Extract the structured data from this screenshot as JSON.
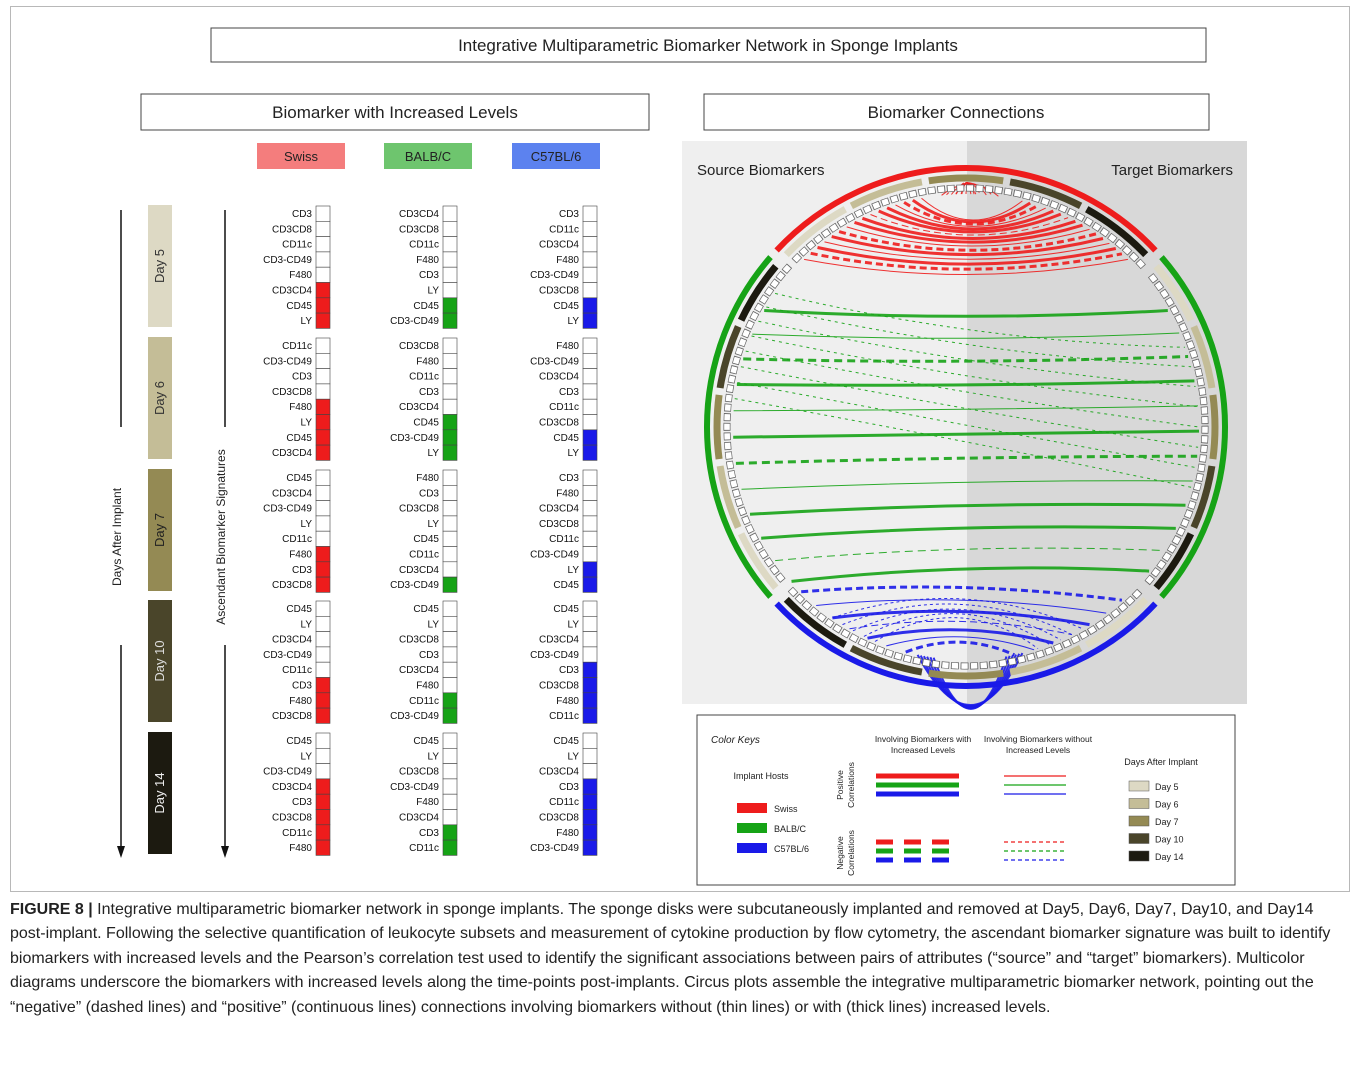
{
  "figure": {
    "title": "Integrative Multiparametric Biomarker Network in Sponge Implants",
    "left_title": "Biomarker with Increased Levels",
    "right_title": "Biomarker Connections",
    "hosts": [
      {
        "name": "Swiss",
        "color": "#ee1c1c",
        "light": "#f47d7d"
      },
      {
        "name": "BALB/C",
        "color": "#16a316",
        "light": "#6ec56e"
      },
      {
        "name": "C57BL/6",
        "color": "#1a1ae8",
        "light": "#5c82ef"
      }
    ],
    "days": [
      {
        "label": "Day 5",
        "color": "#ddd9c4",
        "text": "#333333"
      },
      {
        "label": "Day 6",
        "color": "#c4bd97",
        "text": "#333333"
      },
      {
        "label": "Day 7",
        "color": "#948a54",
        "text": "#222222"
      },
      {
        "label": "Day 10",
        "color": "#4a452a",
        "text": "#dddddd"
      },
      {
        "label": "Day 14",
        "color": "#1c1a10",
        "text": "#eeeeee"
      }
    ],
    "axis_days_label": "Days After Implant",
    "axis_signature_label": "Ascendant Biomarker Signatures",
    "signatures": [
      [
        {
          "labels": [
            "CD3",
            "CD3CD8",
            "CD11c",
            "CD3-CD49",
            "F480",
            "CD3CD4",
            "CD45",
            "LY"
          ],
          "filled": 3
        },
        {
          "labels": [
            "CD3CD4",
            "CD3CD8",
            "CD11c",
            "F480",
            "CD3",
            "LY",
            "CD45",
            "CD3-CD49"
          ],
          "filled": 2
        },
        {
          "labels": [
            "CD3",
            "CD11c",
            "CD3CD4",
            "F480",
            "CD3-CD49",
            "CD3CD8",
            "CD45",
            "LY"
          ],
          "filled": 2
        }
      ],
      [
        {
          "labels": [
            "CD11c",
            "CD3-CD49",
            "CD3",
            "CD3CD8",
            "F480",
            "LY",
            "CD45",
            "CD3CD4"
          ],
          "filled": 4
        },
        {
          "labels": [
            "CD3CD8",
            "F480",
            "CD11c",
            "CD3",
            "CD3CD4",
            "CD45",
            "CD3-CD49",
            "LY"
          ],
          "filled": 3
        },
        {
          "labels": [
            "F480",
            "CD3-CD49",
            "CD3CD4",
            "CD3",
            "CD11c",
            "CD3CD8",
            "CD45",
            "LY"
          ],
          "filled": 2
        }
      ],
      [
        {
          "labels": [
            "CD45",
            "CD3CD4",
            "CD3-CD49",
            "LY",
            "CD11c",
            "F480",
            "CD3",
            "CD3CD8"
          ],
          "filled": 3
        },
        {
          "labels": [
            "F480",
            "CD3",
            "CD3CD8",
            "LY",
            "CD45",
            "CD11c",
            "CD3CD4",
            "CD3-CD49"
          ],
          "filled": 1
        },
        {
          "labels": [
            "CD3",
            "F480",
            "CD3CD4",
            "CD3CD8",
            "CD11c",
            "CD3-CD49",
            "LY",
            "CD45"
          ],
          "filled": 2
        }
      ],
      [
        {
          "labels": [
            "CD45",
            "LY",
            "CD3CD4",
            "CD3-CD49",
            "CD11c",
            "CD3",
            "F480",
            "CD3CD8"
          ],
          "filled": 3
        },
        {
          "labels": [
            "CD45",
            "LY",
            "CD3CD8",
            "CD3",
            "CD3CD4",
            "F480",
            "CD11c",
            "CD3-CD49"
          ],
          "filled": 2
        },
        {
          "labels": [
            "CD45",
            "LY",
            "CD3CD4",
            "CD3-CD49",
            "CD3",
            "CD3CD8",
            "F480",
            "CD11c"
          ],
          "filled": 4
        }
      ],
      [
        {
          "labels": [
            "CD45",
            "LY",
            "CD3-CD49",
            "CD3CD4",
            "CD3",
            "CD3CD8",
            "CD11c",
            "F480"
          ],
          "filled": 5
        },
        {
          "labels": [
            "CD45",
            "LY",
            "CD3CD8",
            "CD3-CD49",
            "F480",
            "CD3CD4",
            "CD3",
            "CD11c"
          ],
          "filled": 2
        },
        {
          "labels": [
            "CD45",
            "LY",
            "CD3CD4",
            "CD3",
            "CD11c",
            "CD3CD8",
            "F480",
            "CD3-CD49"
          ],
          "filled": 5
        }
      ]
    ],
    "circos": {
      "source_label": "Source Biomarkers",
      "target_label": "Target Biomarkers"
    },
    "legend": {
      "title": "Color Keys",
      "hosts_title": "Implant Hosts",
      "col_with": "Involving Biomarkers with Increased Levels",
      "col_without": "Involving Biomarkers without Increased Levels",
      "row_positive": "Positive Correlations",
      "row_negative": "Negative Correlations",
      "days_title": "Days After Implant"
    }
  },
  "caption": {
    "label": "FIGURE 8 |",
    "text": " Integrative multiparametric biomarker network in sponge implants. The sponge disks were subcutaneously implanted and removed at Day5, Day6, Day7, Day10, and Day14 post-implant. Following the selective quantification of leukocyte subsets and measurement of cytokine production by flow cytometry, the ascendant biomarker signature was built to identify biomarkers with increased levels and the Pearson’s correlation test used to identify the significant associations between pairs of attributes (“source” and “target” biomarkers). Multicolor diagrams underscore the biomarkers with increased levels along the time-points post-implants. Circus plots assemble the integrative multiparametric biomarker network, pointing out the “negative” (dashed lines) and “positive” (continuous lines) connections involving biomarkers without (thin lines) or with (thick lines) increased levels."
  }
}
